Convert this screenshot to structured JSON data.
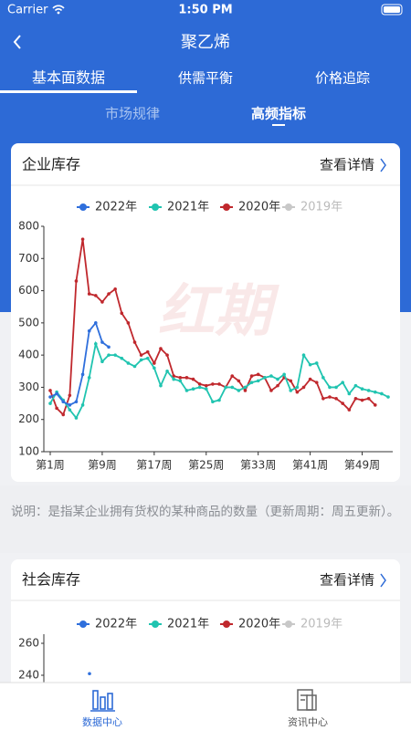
{
  "status_bar": {
    "carrier": "Carrier",
    "time": "1:50 PM"
  },
  "nav": {
    "title": "聚乙烯"
  },
  "tabs": [
    "基本面数据",
    "供需平衡",
    "价格追踪"
  ],
  "sub_tabs": [
    "市场规律",
    "高频指标"
  ],
  "cards": [
    {
      "title": "企业库存",
      "link": "查看详情"
    },
    {
      "title": "社会库存",
      "link": "查看详情"
    }
  ],
  "note": "说明：是指某企业拥有货权的某种商品的数量（更新周期：周五更新）。",
  "watermark": "红期",
  "tab_bar": [
    "数据中心",
    "资讯中心"
  ],
  "chart_data": [
    {
      "type": "line",
      "categories": [
        "第1周",
        null,
        null,
        null,
        null,
        null,
        null,
        null,
        "第9周",
        null,
        null,
        null,
        null,
        null,
        null,
        null,
        "第17周",
        null,
        null,
        null,
        null,
        null,
        null,
        null,
        "第25周",
        null,
        null,
        null,
        null,
        null,
        null,
        null,
        "第33周",
        null,
        null,
        null,
        null,
        null,
        null,
        null,
        "第41周",
        null,
        null,
        null,
        null,
        null,
        null,
        null,
        "第49周",
        null,
        null,
        null,
        null
      ],
      "ylim": [
        100,
        800
      ],
      "yticks": [
        100,
        200,
        300,
        400,
        500,
        600,
        700,
        800
      ],
      "series": [
        {
          "name": "2022年",
          "color": "#2f6fdc",
          "values": [
            270,
            280,
            255,
            245,
            255,
            340,
            475,
            500,
            440,
            425,
            null,
            null,
            null,
            null,
            null,
            null,
            null,
            null,
            null,
            null,
            null,
            null,
            null,
            null,
            null,
            null,
            null,
            null,
            null,
            null,
            null,
            null,
            null,
            null,
            null,
            null,
            null,
            null,
            null,
            null,
            null,
            null,
            null,
            null,
            null,
            null,
            null,
            null,
            null,
            null,
            null,
            null,
            null
          ]
        },
        {
          "name": "2021年",
          "color": "#20c4b0",
          "values": [
            250,
            285,
            260,
            230,
            205,
            245,
            330,
            435,
            380,
            400,
            400,
            390,
            375,
            365,
            385,
            390,
            360,
            305,
            350,
            325,
            320,
            290,
            295,
            300,
            295,
            255,
            260,
            300,
            300,
            290,
            300,
            315,
            320,
            330,
            335,
            325,
            340,
            290,
            300,
            400,
            370,
            375,
            330,
            300,
            300,
            315,
            280,
            305,
            295,
            290,
            285,
            280,
            270
          ]
        },
        {
          "name": "2020年",
          "color": "#c0282d",
          "values": [
            290,
            235,
            215,
            275,
            630,
            760,
            590,
            585,
            565,
            590,
            605,
            530,
            500,
            440,
            400,
            410,
            375,
            420,
            400,
            335,
            330,
            330,
            325,
            310,
            305,
            310,
            310,
            300,
            335,
            320,
            290,
            335,
            340,
            330,
            290,
            305,
            330,
            320,
            285,
            300,
            325,
            315,
            265,
            270,
            265,
            250,
            230,
            265,
            260,
            265,
            245,
            null,
            null
          ]
        },
        {
          "name": "2019年",
          "color": "#c8c8c8",
          "visible": false
        }
      ]
    },
    {
      "type": "line",
      "yticks": [
        240,
        260
      ],
      "series": [
        {
          "name": "2022年",
          "color": "#2f6fdc",
          "values": [
            241
          ]
        },
        {
          "name": "2021年",
          "color": "#20c4b0"
        },
        {
          "name": "2020年",
          "color": "#c0282d"
        },
        {
          "name": "2019年",
          "color": "#c8c8c8",
          "visible": false
        }
      ]
    }
  ]
}
